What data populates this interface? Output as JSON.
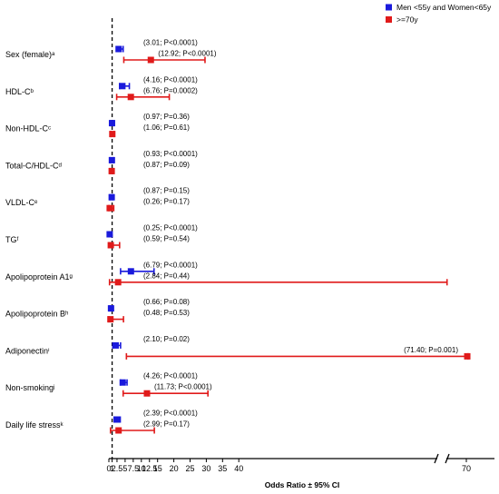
{
  "chart_data": {
    "type": "forest",
    "xlabel": "Odds Ratio ± 95% CI",
    "reference_line": 1,
    "x_ticks": [
      "0",
      "1",
      "2.5",
      "5",
      "7.5",
      "10",
      "12.5",
      "15",
      "20",
      "25",
      "30",
      "35",
      "40",
      "70"
    ],
    "axis_break_between": [
      40,
      70
    ],
    "legend": [
      {
        "label": "Men <55y and Women<65y",
        "color": "#1a1adc"
      },
      {
        "label": ">=70y",
        "color": "#e01a1a"
      }
    ],
    "legend_position": "top-right",
    "rows": [
      {
        "label": "Sex (female)ᵃ",
        "young": {
          "or": 3.01,
          "lo": 2.3,
          "hi": 4.4,
          "text": "(3.01; P<0.0001)"
        },
        "old": {
          "or": 12.92,
          "lo": 4.6,
          "hi": 29.6,
          "text": "(12.92; P<0.0001)"
        }
      },
      {
        "label": "HDL-Cᵇ",
        "young": {
          "or": 4.16,
          "lo": 3.3,
          "hi": 6.3,
          "text": "(4.16; P<0.0001)"
        },
        "old": {
          "or": 6.76,
          "lo": 2.4,
          "hi": 18.6,
          "text": "(6.76; P=0.0002)"
        }
      },
      {
        "label": "Non-HDL-Cᶜ",
        "young": {
          "or": 0.97,
          "lo": 0.5,
          "hi": 1.4,
          "text": "(0.97; P=0.36)"
        },
        "old": {
          "or": 1.06,
          "lo": 0.6,
          "hi": 1.6,
          "text": "(1.06; P=0.61)"
        }
      },
      {
        "label": "Total-C/HDL-Cᵈ",
        "young": {
          "or": 0.93,
          "lo": 0.4,
          "hi": 1.3,
          "text": "(0.93; P<0.0001)"
        },
        "old": {
          "or": 0.87,
          "lo": 0.4,
          "hi": 1.3,
          "text": "(0.87; P=0.09)"
        }
      },
      {
        "label": "VLDL-Cᵉ",
        "young": {
          "or": 0.87,
          "lo": 0.4,
          "hi": 1.2,
          "text": "(0.87; P=0.15)"
        },
        "old": {
          "or": 0.26,
          "lo": 0.0,
          "hi": 1.5,
          "text": "(0.26; P=0.17)"
        }
      },
      {
        "label": "TGᶠ",
        "young": {
          "or": 0.25,
          "lo": 0.0,
          "hi": 0.9,
          "text": "(0.25; P<0.0001)"
        },
        "old": {
          "or": 0.59,
          "lo": 0.0,
          "hi": 3.3,
          "text": "(0.59; P=0.54)"
        }
      },
      {
        "label": "Apolipoprotein A1ᵍ",
        "young": {
          "or": 6.79,
          "lo": 3.6,
          "hi": 13.9,
          "text": "(6.79; P<0.0001)"
        },
        "old": {
          "or": 2.84,
          "lo": 0.2,
          "hi": 41.0,
          "text": "(2.84; P=0.44)"
        }
      },
      {
        "label": "Apolipoprotein Bʰ",
        "young": {
          "or": 0.66,
          "lo": 0.3,
          "hi": 1.0,
          "text": "(0.66; P=0.08)"
        },
        "old": {
          "or": 0.48,
          "lo": 0.0,
          "hi": 4.5,
          "text": "(0.48; P=0.53)"
        }
      },
      {
        "label": "Adiponectinⁱ",
        "young": {
          "or": 2.1,
          "lo": 1.2,
          "hi": 3.6,
          "text": "(2.10; P=0.02)"
        },
        "old": {
          "or": 71.4,
          "lo": 5.4,
          "hi": 72.5,
          "text": "(71.40; P=0.001)"
        }
      },
      {
        "label": "Non-smokingʲ",
        "young": {
          "or": 4.26,
          "lo": 3.6,
          "hi": 5.6,
          "text": "(4.26; P<0.0001)"
        },
        "old": {
          "or": 11.73,
          "lo": 4.4,
          "hi": 30.5,
          "text": "(11.73; P<0.0001)"
        }
      },
      {
        "label": "Daily life stressᵏ",
        "young": {
          "or": 2.39,
          "lo": 1.7,
          "hi": 3.5,
          "text": "(2.39; P<0.0001)"
        },
        "old": {
          "or": 2.99,
          "lo": 0.5,
          "hi": 14.0,
          "text": "(2.99; P=0.17)"
        }
      }
    ]
  }
}
